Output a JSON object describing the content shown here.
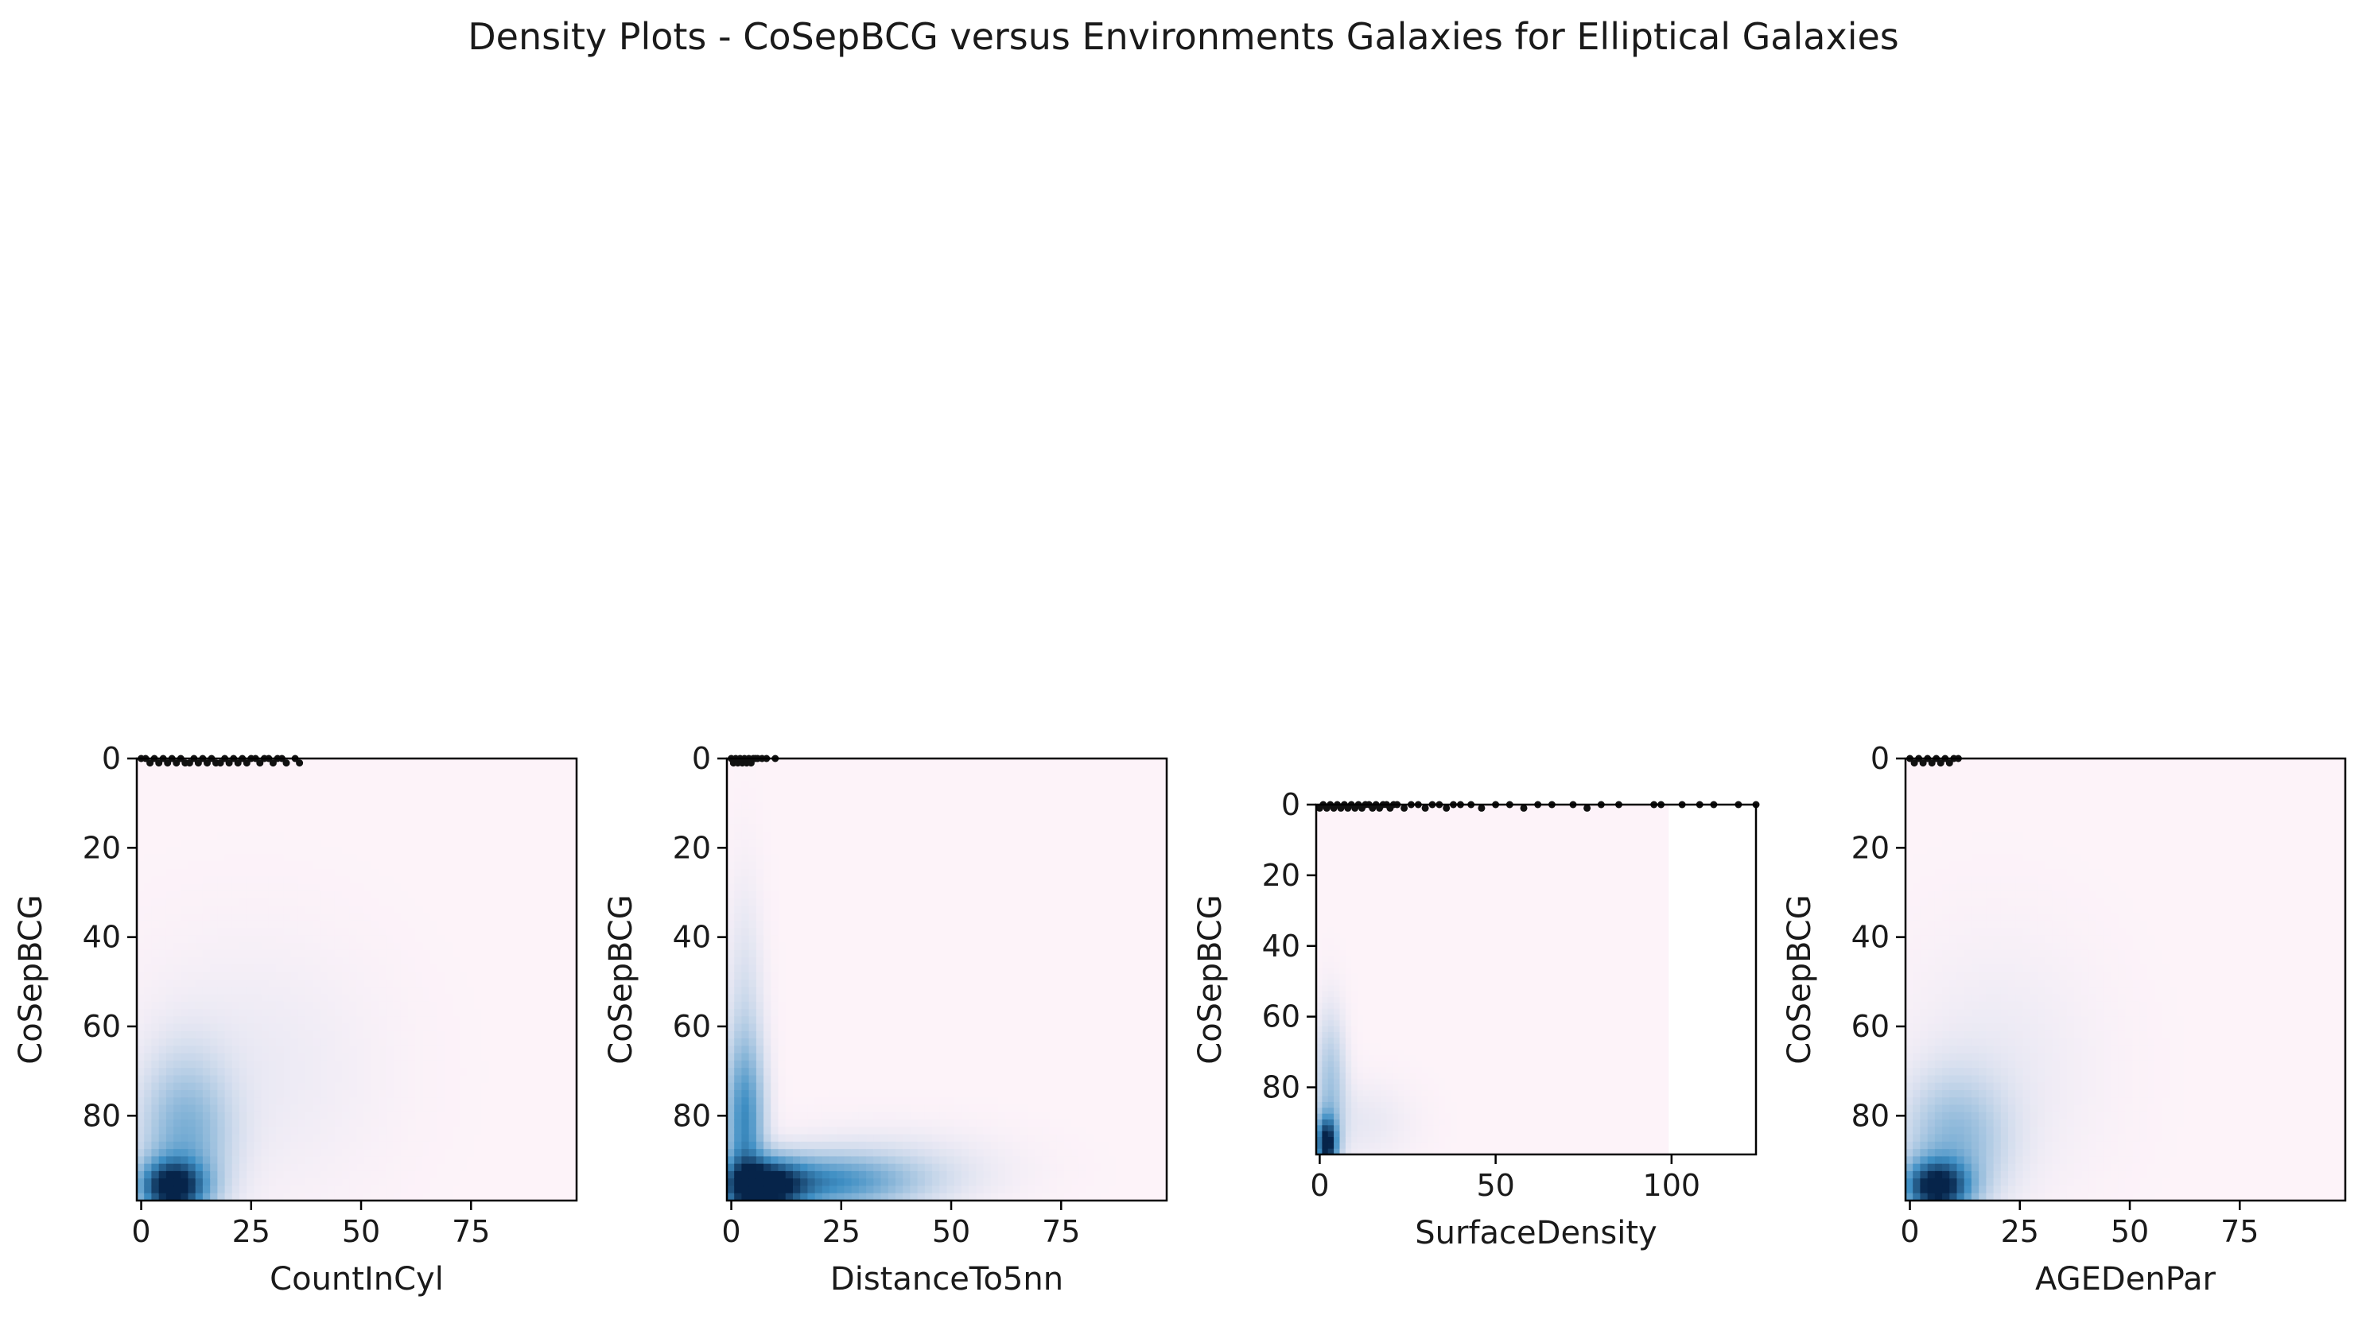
{
  "figure_title": "Density Plots - CoSepBCG versus Environments Galaxies  for Elliptical Galaxies",
  "colors": {
    "low": "#fdf3f9",
    "mid": "#3f8fc4",
    "high": "#06244a",
    "points": "#111111",
    "axis": "#000000"
  },
  "chart_data": [
    {
      "type": "heatmap",
      "xlabel": "CountInCyl",
      "ylabel": "CoSepBCG",
      "xlim": [
        -1,
        99
      ],
      "ylim": [
        99,
        0
      ],
      "xticks": [
        0,
        25,
        50,
        75
      ],
      "yticks": [
        0,
        20,
        40,
        60,
        80
      ],
      "grid": false,
      "density_blobs": [
        {
          "x": 7,
          "y": 96,
          "sx": 5,
          "sy": 4,
          "w": 1.0
        },
        {
          "x": 10,
          "y": 85,
          "sx": 7,
          "sy": 12,
          "w": 0.35
        },
        {
          "x": 25,
          "y": 70,
          "sx": 20,
          "sy": 20,
          "w": 0.05
        }
      ],
      "points_x": [
        0,
        1,
        2,
        3,
        4,
        5,
        6,
        7,
        8,
        9,
        10,
        11,
        12,
        13,
        14,
        15,
        16,
        17,
        18,
        19,
        20,
        21,
        22,
        23,
        24,
        25,
        26,
        27,
        28,
        29,
        30,
        31,
        32,
        33,
        35,
        36
      ],
      "points_y": [
        0,
        0,
        1,
        0,
        1,
        0,
        1,
        0,
        1,
        0,
        1,
        1,
        0,
        1,
        0,
        1,
        0,
        1,
        1,
        0,
        1,
        0,
        1,
        0,
        1,
        0,
        0,
        1,
        0,
        0,
        1,
        0,
        0,
        1,
        0,
        1
      ]
    },
    {
      "type": "heatmap",
      "xlabel": "DistanceTo5nn",
      "ylabel": "CoSepBCG",
      "xlim": [
        -1,
        99
      ],
      "ylim": [
        99,
        0
      ],
      "xticks": [
        0,
        25,
        50,
        75
      ],
      "yticks": [
        0,
        20,
        40,
        60,
        80
      ],
      "grid": false,
      "density_blobs": [
        {
          "x": 7,
          "y": 96,
          "sx": 6,
          "sy": 4,
          "w": 1.0
        },
        {
          "x": 20,
          "y": 95,
          "sx": 14,
          "sy": 4,
          "w": 0.5
        },
        {
          "x": 3,
          "y": 82,
          "sx": 3,
          "sy": 12,
          "w": 0.5
        },
        {
          "x": 3,
          "y": 60,
          "sx": 3,
          "sy": 20,
          "w": 0.12
        },
        {
          "x": 35,
          "y": 92,
          "sx": 18,
          "sy": 6,
          "w": 0.1
        }
      ],
      "points_x": [
        0,
        0.5,
        1,
        1.5,
        2,
        2.5,
        3,
        3.5,
        4,
        4.5,
        5,
        5.5,
        6,
        7,
        8,
        10
      ],
      "points_y": [
        0,
        1,
        0,
        1,
        0,
        1,
        0,
        1,
        0,
        1,
        0,
        0,
        0,
        0,
        0,
        0
      ]
    },
    {
      "type": "heatmap",
      "xlabel": "SurfaceDensity",
      "ylabel": "CoSepBCG",
      "xlim": [
        -1,
        124
      ],
      "ylim": [
        99,
        0
      ],
      "xticks": [
        0,
        50,
        100
      ],
      "yticks": [
        0,
        20,
        40,
        60,
        80
      ],
      "grid": false,
      "density_extent_x": 99,
      "density_blobs": [
        {
          "x": 2,
          "y": 96,
          "sx": 2,
          "sy": 5,
          "w": 1.0
        },
        {
          "x": 3,
          "y": 80,
          "sx": 3,
          "sy": 14,
          "w": 0.25
        },
        {
          "x": 12,
          "y": 90,
          "sx": 10,
          "sy": 8,
          "w": 0.06
        }
      ],
      "points_x": [
        0,
        1,
        2,
        3,
        4,
        5,
        6,
        7,
        8,
        9,
        10,
        11,
        12,
        13,
        14,
        15,
        16,
        17,
        18,
        19,
        20,
        21,
        22,
        24,
        26,
        28,
        30,
        32,
        34,
        36,
        38,
        40,
        43,
        46,
        50,
        54,
        58,
        62,
        66,
        72,
        76,
        80,
        85,
        95,
        97,
        103,
        108,
        112,
        119,
        124
      ],
      "points_y": [
        1,
        0,
        1,
        0,
        1,
        0,
        1,
        0,
        1,
        0,
        1,
        0,
        1,
        0,
        0,
        1,
        0,
        1,
        0,
        0,
        1,
        0,
        0,
        1,
        0,
        0,
        1,
        0,
        0,
        1,
        0,
        0,
        0,
        1,
        0,
        0,
        1,
        0,
        0,
        0,
        1,
        0,
        0,
        0,
        0,
        0,
        0,
        0,
        0,
        0
      ]
    },
    {
      "type": "heatmap",
      "xlabel": "AGEDenPar",
      "ylabel": "CoSepBCG",
      "xlim": [
        -1,
        99
      ],
      "ylim": [
        99,
        0
      ],
      "xticks": [
        0,
        25,
        50,
        75
      ],
      "yticks": [
        0,
        20,
        40,
        60,
        80
      ],
      "grid": false,
      "density_blobs": [
        {
          "x": 6,
          "y": 96,
          "sx": 5,
          "sy": 4,
          "w": 1.0
        },
        {
          "x": 10,
          "y": 86,
          "sx": 8,
          "sy": 10,
          "w": 0.3
        },
        {
          "x": 20,
          "y": 70,
          "sx": 16,
          "sy": 20,
          "w": 0.05
        }
      ],
      "points_x": [
        0,
        1,
        2,
        3,
        4,
        5,
        6,
        7,
        8,
        9,
        10,
        11
      ],
      "points_y": [
        0,
        1,
        0,
        1,
        0,
        1,
        0,
        1,
        0,
        1,
        0,
        0
      ]
    }
  ]
}
